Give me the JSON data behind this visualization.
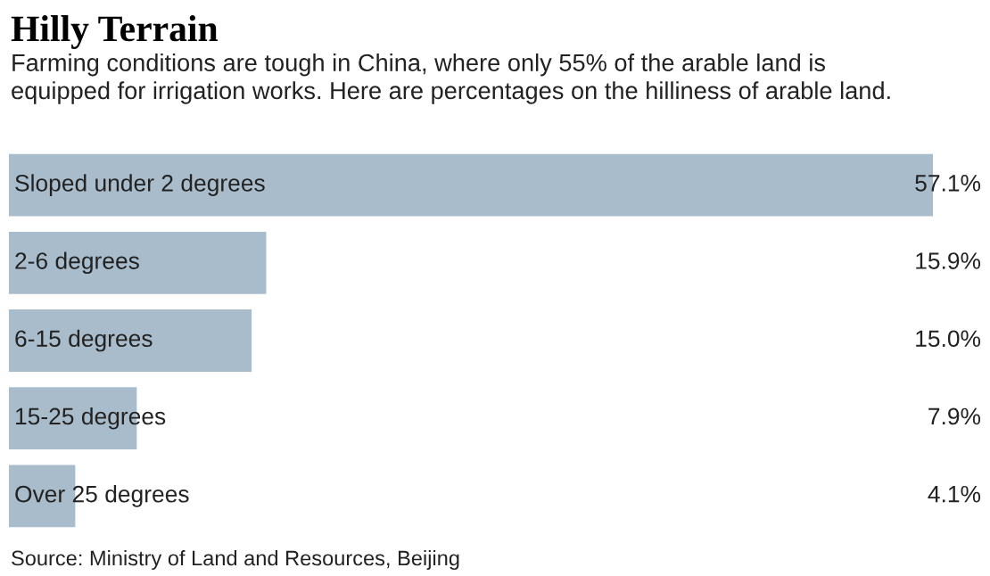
{
  "chart_data": {
    "type": "bar",
    "orientation": "horizontal",
    "title": "Hilly Terrain",
    "subtitle": "Farming conditions are tough in China, where only 55% of the arable land is\nequipped for irrigation works. Here are percentages on the hilliness of arable land.",
    "categories": [
      "Sloped under 2 degrees",
      "2-6 degrees",
      "6-15 degrees",
      "15-25 degrees",
      "Over 25 degrees"
    ],
    "values": [
      57.1,
      15.9,
      15.0,
      7.9,
      4.1
    ],
    "value_labels": [
      "57.1%",
      "15.9%",
      "15.0%",
      "7.9%",
      "4.1%"
    ],
    "color": "#a9bccb",
    "annotations": [
      "Source: Ministry of Land and Resources, Beijing"
    ]
  }
}
